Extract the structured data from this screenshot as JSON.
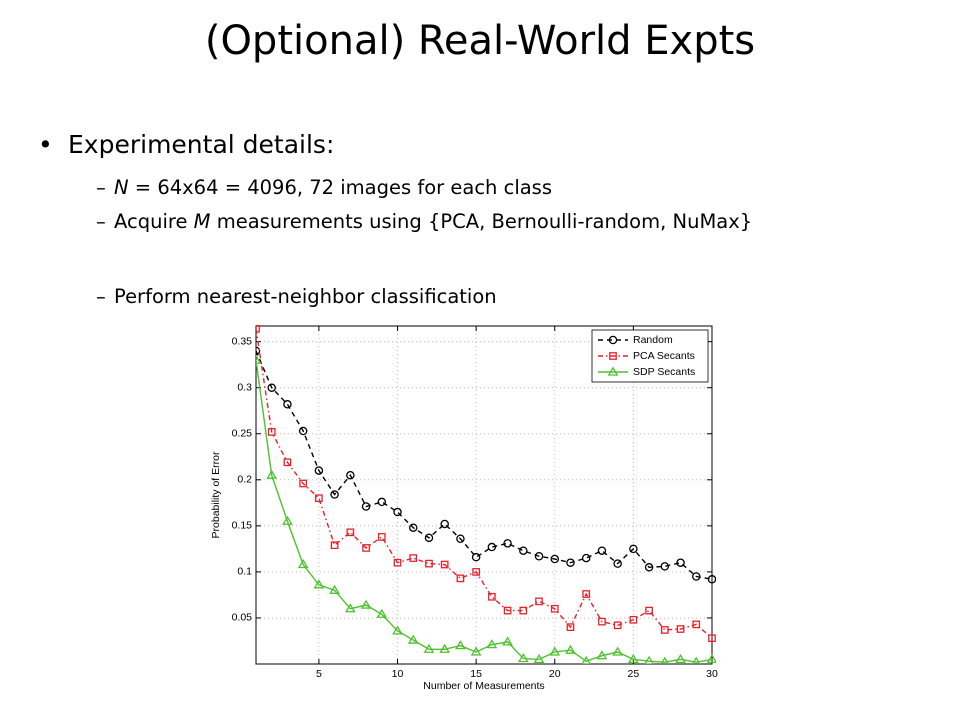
{
  "title": "(Optional) Real-World Expts",
  "bullet": "Experimental details:",
  "sub_bullets": [
    [
      "N",
      " = 64x64 = 4096, 72 images for each class"
    ],
    [
      "Acquire ",
      "M",
      " measurements using {PCA, Bernoulli-random, NuMax}"
    ],
    [
      "Perform nearest-neighbor classification"
    ]
  ],
  "chart_data": {
    "type": "line",
    "xlabel": "Number of Measurements",
    "ylabel": "Probability of Error",
    "x": [
      1,
      2,
      3,
      4,
      5,
      6,
      7,
      8,
      9,
      10,
      11,
      12,
      13,
      14,
      15,
      16,
      17,
      18,
      19,
      20,
      21,
      22,
      23,
      24,
      25,
      26,
      27,
      28,
      29,
      30
    ],
    "xlim": [
      1,
      30
    ],
    "xticks": [
      5,
      10,
      15,
      20,
      25,
      30
    ],
    "ylim": [
      0,
      0.367
    ],
    "yticks": [
      0.05,
      0.1,
      0.15,
      0.2,
      0.25,
      0.3,
      0.35
    ],
    "grid": true,
    "legend": "upper right",
    "series": [
      {
        "name": "Random",
        "color": "#000000",
        "marker": "circle",
        "dash": "dashed",
        "values": [
          0.34,
          0.3,
          0.282,
          0.253,
          0.21,
          0.184,
          0.205,
          0.171,
          0.176,
          0.165,
          0.148,
          0.137,
          0.152,
          0.136,
          0.116,
          0.127,
          0.131,
          0.123,
          0.117,
          0.114,
          0.11,
          0.115,
          0.123,
          0.109,
          0.125,
          0.105,
          0.106,
          0.11,
          0.095,
          0.092
        ]
      },
      {
        "name": "PCA Secants",
        "color": "#e8202a",
        "marker": "square",
        "dash": "dashdot",
        "values": [
          0.364,
          0.252,
          0.219,
          0.196,
          0.18,
          0.129,
          0.143,
          0.126,
          0.138,
          0.11,
          0.115,
          0.109,
          0.108,
          0.093,
          0.1,
          0.073,
          0.058,
          0.058,
          0.068,
          0.06,
          0.04,
          0.076,
          0.046,
          0.042,
          0.048,
          0.058,
          0.037,
          0.038,
          0.043,
          0.028
        ]
      },
      {
        "name": "SDP Secants",
        "color": "#4ec12f",
        "marker": "triangle",
        "dash": "solid",
        "values": [
          0.33,
          0.205,
          0.155,
          0.108,
          0.086,
          0.08,
          0.06,
          0.064,
          0.054,
          0.036,
          0.026,
          0.016,
          0.016,
          0.02,
          0.013,
          0.021,
          0.024,
          0.006,
          0.005,
          0.013,
          0.015,
          0.003,
          0.009,
          0.013,
          0.005,
          0.003,
          0.002,
          0.005,
          0.002,
          0.005
        ]
      }
    ]
  }
}
